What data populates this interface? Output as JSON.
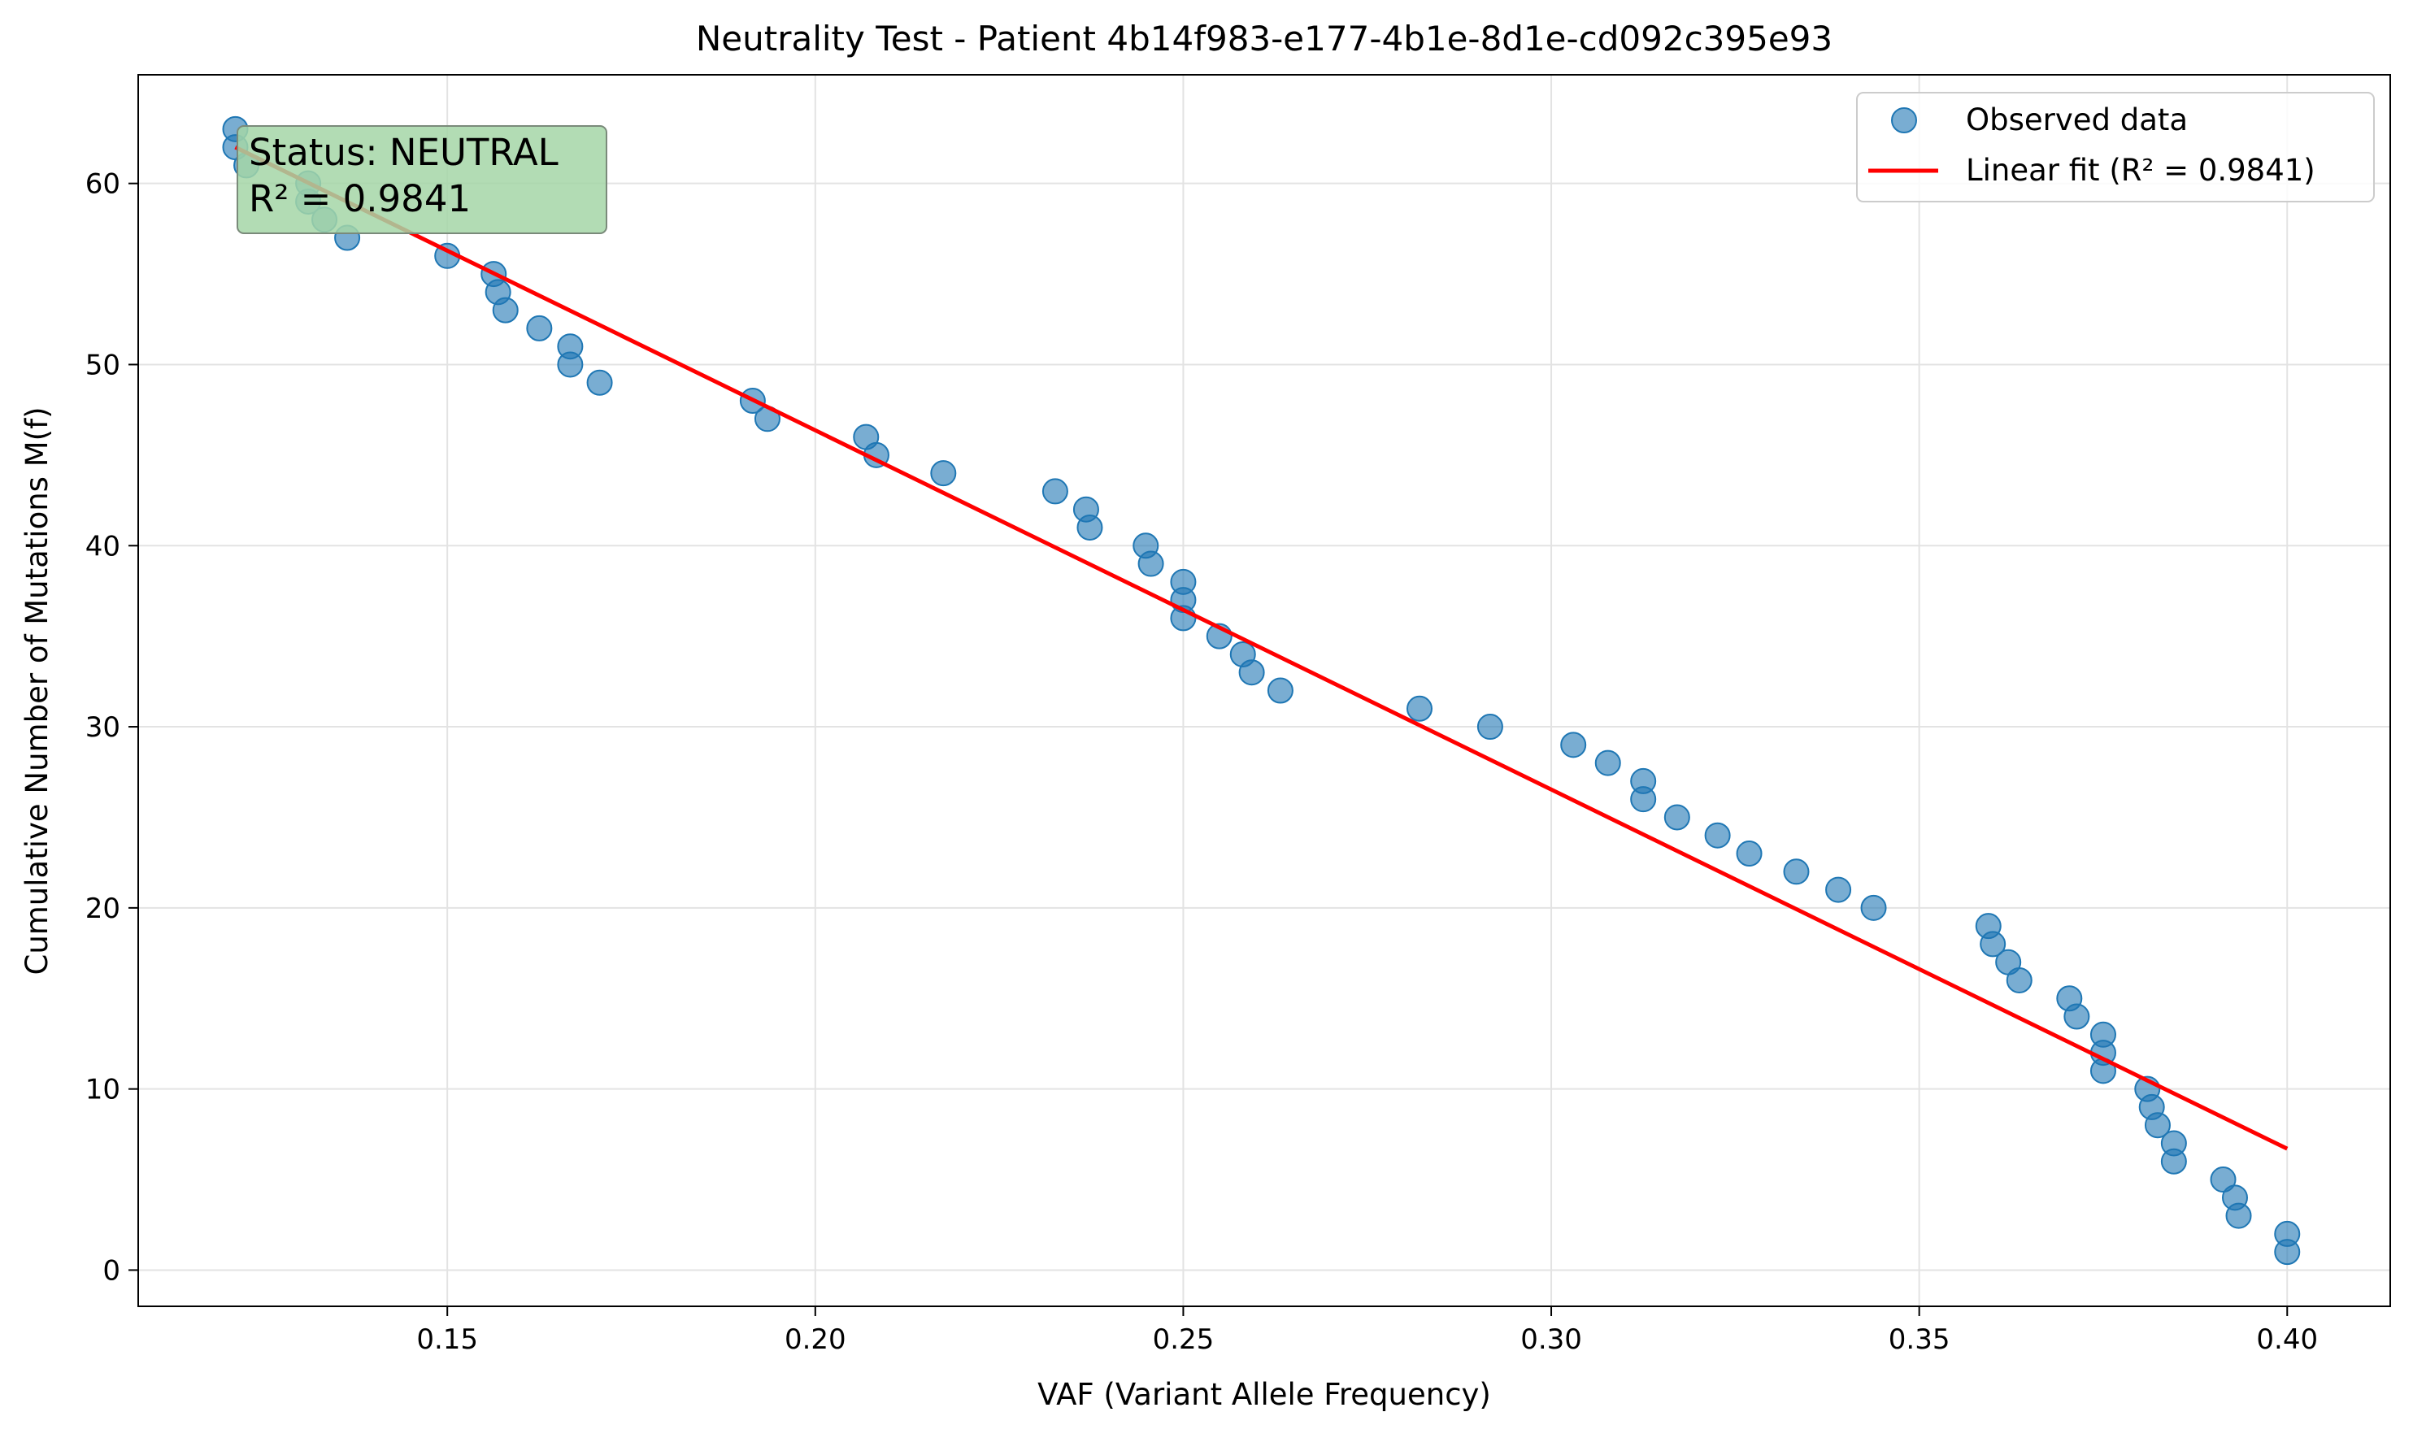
{
  "chart_data": {
    "type": "scatter",
    "title": "Neutrality Test - Patient 4b14f983-e177-4b1e-8d1e-cd092c395e93",
    "xlabel": "VAF (Variant Allele Frequency)",
    "ylabel": "Cumulative Number of Mutations M(f)",
    "xlim": [
      0.108,
      0.414
    ],
    "ylim": [
      -2.0,
      66.0
    ],
    "xticks": [
      0.15,
      0.2,
      0.25,
      0.3,
      0.35,
      0.4
    ],
    "xtick_labels": [
      "0.15",
      "0.20",
      "0.25",
      "0.30",
      "0.35",
      "0.40"
    ],
    "yticks": [
      0,
      10,
      20,
      30,
      40,
      50,
      60
    ],
    "ytick_labels": [
      "0",
      "10",
      "20",
      "30",
      "40",
      "50",
      "60"
    ],
    "grid": true,
    "legend_position": "top-right",
    "colors": {
      "points": "#1f77b4",
      "fit_line": "#ff0000",
      "status_box": "#a5d6a7"
    },
    "series": [
      {
        "name": "Observed data",
        "kind": "scatter",
        "points": [
          [
            0.1212,
            63
          ],
          [
            0.1212,
            62
          ],
          [
            0.1227,
            61
          ],
          [
            0.1311,
            60
          ],
          [
            0.1311,
            59
          ],
          [
            0.1333,
            58
          ],
          [
            0.1364,
            57
          ],
          [
            0.15,
            56
          ],
          [
            0.1563,
            55
          ],
          [
            0.1569,
            54
          ],
          [
            0.1579,
            53
          ],
          [
            0.1625,
            52
          ],
          [
            0.1667,
            51
          ],
          [
            0.1667,
            50
          ],
          [
            0.1707,
            49
          ],
          [
            0.1915,
            48
          ],
          [
            0.1935,
            47
          ],
          [
            0.2069,
            46
          ],
          [
            0.2083,
            45
          ],
          [
            0.2174,
            44
          ],
          [
            0.2326,
            43
          ],
          [
            0.2368,
            42
          ],
          [
            0.2373,
            41
          ],
          [
            0.2449,
            40
          ],
          [
            0.2456,
            39
          ],
          [
            0.25,
            38
          ],
          [
            0.25,
            37
          ],
          [
            0.25,
            36
          ],
          [
            0.2549,
            35
          ],
          [
            0.2581,
            34
          ],
          [
            0.2593,
            33
          ],
          [
            0.2632,
            32
          ],
          [
            0.2821,
            31
          ],
          [
            0.2917,
            30
          ],
          [
            0.303,
            29
          ],
          [
            0.3077,
            28
          ],
          [
            0.3125,
            27
          ],
          [
            0.3125,
            26
          ],
          [
            0.3171,
            25
          ],
          [
            0.3226,
            24
          ],
          [
            0.3269,
            23
          ],
          [
            0.3333,
            22
          ],
          [
            0.339,
            21
          ],
          [
            0.3438,
            20
          ],
          [
            0.3594,
            19
          ],
          [
            0.36,
            18
          ],
          [
            0.3621,
            17
          ],
          [
            0.3636,
            16
          ],
          [
            0.3704,
            15
          ],
          [
            0.3714,
            14
          ],
          [
            0.375,
            13
          ],
          [
            0.375,
            12
          ],
          [
            0.375,
            11
          ],
          [
            0.381,
            10
          ],
          [
            0.3816,
            9
          ],
          [
            0.3824,
            8
          ],
          [
            0.3846,
            7
          ],
          [
            0.3846,
            6
          ],
          [
            0.3913,
            5
          ],
          [
            0.3929,
            4
          ],
          [
            0.3934,
            3
          ],
          [
            0.4,
            2
          ],
          [
            0.4,
            1
          ]
        ]
      },
      {
        "name": "Linear fit (R² = 0.9841)",
        "kind": "line",
        "points": [
          [
            0.1212,
            62.0
          ],
          [
            0.4,
            6.7
          ]
        ]
      }
    ],
    "annotation": {
      "line1": "Status: NEUTRAL",
      "line2": "R² = 0.9841"
    }
  }
}
